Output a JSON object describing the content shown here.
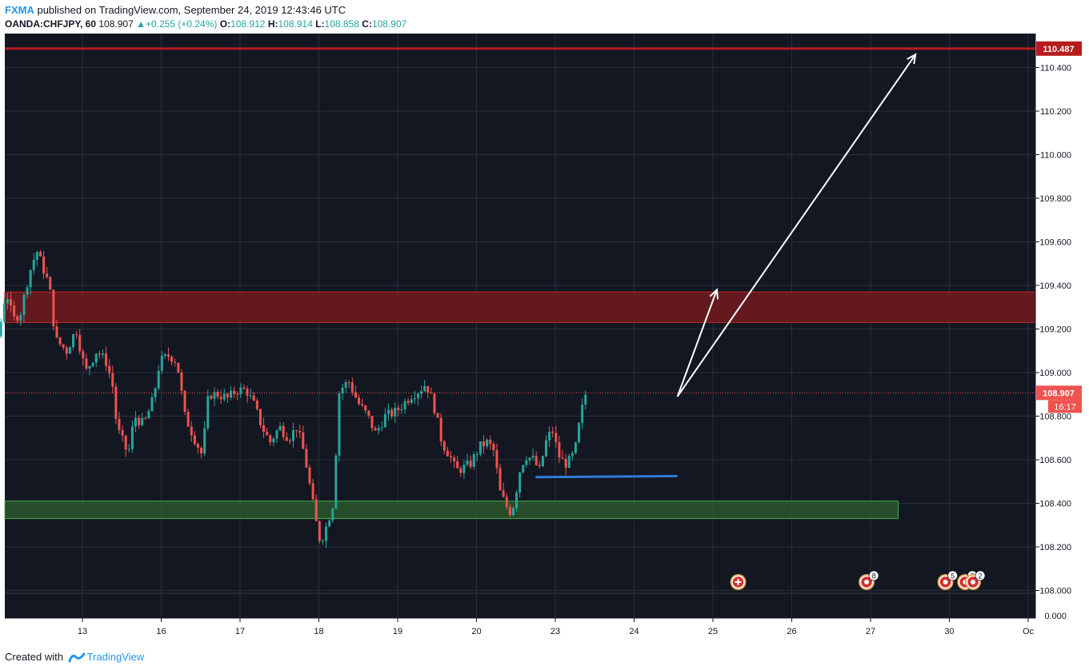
{
  "header": {
    "author": "FXMA",
    "published_text": "published on TradingView.com, September 24, 2019 12:43:46 UTC",
    "symbol": "OANDA:CHFJPY, 60",
    "last": "108.907",
    "change": "▲+0.255 (+0.24%)",
    "o_label": "O:",
    "o_value": "108.912",
    "h_label": "H:",
    "h_value": "108.914",
    "l_label": "L:",
    "l_value": "108.858",
    "c_label": "C:",
    "c_value": "108.907"
  },
  "footer": {
    "created_with": "Created with",
    "brand": "TradingView"
  },
  "colors": {
    "background": "#131722",
    "grid": "#2a2e39",
    "up": "#26a69a",
    "down": "#ef5350",
    "resistance_line": "#b71c1c",
    "resistance_zone": "#6e1a1f",
    "support_zone": "#2e5f2c",
    "support_line": "#2f7bd8",
    "arrow": "#ffffff",
    "price_label": "#ef5350"
  },
  "chart_data": {
    "type": "candlestick",
    "symbol": "OANDA:CHFJPY",
    "interval": "60",
    "ylim": [
      107.95,
      110.55
    ],
    "y_ticks": [
      "110.400",
      "110.200",
      "110.000",
      "109.800",
      "109.600",
      "109.400",
      "109.200",
      "109.000",
      "108.800",
      "108.600",
      "108.400",
      "108.200",
      "108.000"
    ],
    "x_ticks": [
      {
        "label": "13",
        "day": 1
      },
      {
        "label": "16",
        "day": 2
      },
      {
        "label": "17",
        "day": 3
      },
      {
        "label": "18",
        "day": 4
      },
      {
        "label": "19",
        "day": 5
      },
      {
        "label": "20",
        "day": 6
      },
      {
        "label": "23",
        "day": 7
      },
      {
        "label": "24",
        "day": 8
      },
      {
        "label": "25",
        "day": 9
      },
      {
        "label": "26",
        "day": 10
      },
      {
        "label": "27",
        "day": 11
      },
      {
        "label": "30",
        "day": 12
      },
      {
        "label": "Oc",
        "day": 13
      }
    ],
    "current_price": "108.907",
    "countdown": "16:17",
    "resistance_price": "110.487",
    "volume_axis_label": "0.000",
    "resistance_line": 110.487,
    "resistance_zone": [
      109.23,
      109.37
    ],
    "support_zone": [
      108.33,
      108.41
    ],
    "support_line": {
      "from": {
        "day": 6.75,
        "price": 108.52
      },
      "to": {
        "day": 8.55,
        "price": 108.525
      }
    },
    "arrows": [
      {
        "from": {
          "day": 8.55,
          "price": 108.89
        },
        "to": {
          "day": 9.05,
          "price": 109.38
        }
      },
      {
        "from": {
          "day": 8.55,
          "price": 108.89
        },
        "to": {
          "day": 11.57,
          "price": 110.46
        }
      }
    ],
    "event_markers": [
      {
        "day": 9.32,
        "label": "",
        "type": "plus"
      },
      {
        "day": 10.95,
        "label": "8",
        "type": "flag"
      },
      {
        "day": 11.95,
        "label": "5",
        "type": "flag"
      },
      {
        "day": 12.2,
        "label": "2",
        "type": "flag"
      },
      {
        "day": 12.3,
        "label": "2",
        "type": "flag"
      }
    ],
    "path": [
      [
        -0.95,
        108.72
      ],
      [
        -0.85,
        108.8
      ],
      [
        -0.72,
        108.78
      ],
      [
        -0.58,
        108.9
      ],
      [
        -0.48,
        108.95
      ],
      [
        -0.46,
        108.4
      ],
      [
        -0.42,
        108.36
      ],
      [
        -0.34,
        108.8
      ],
      [
        -0.3,
        109.05
      ],
      [
        -0.26,
        109.25
      ],
      [
        -0.18,
        109.15
      ],
      [
        -0.12,
        109.1
      ],
      [
        -0.04,
        109.22
      ],
      [
        0.03,
        109.38
      ],
      [
        0.12,
        109.24
      ],
      [
        0.22,
        109.28
      ],
      [
        0.32,
        109.45
      ],
      [
        0.42,
        109.56
      ],
      [
        0.52,
        109.46
      ],
      [
        0.58,
        109.4
      ],
      [
        0.66,
        109.15
      ],
      [
        0.8,
        109.1
      ],
      [
        0.92,
        109.2
      ],
      [
        1.04,
        109.0
      ],
      [
        1.18,
        109.1
      ],
      [
        1.3,
        109.05
      ],
      [
        1.38,
        108.95
      ],
      [
        1.42,
        108.8
      ],
      [
        1.48,
        108.7
      ],
      [
        1.52,
        108.68
      ],
      [
        1.58,
        108.62
      ],
      [
        1.66,
        108.8
      ],
      [
        1.78,
        108.76
      ],
      [
        1.9,
        108.88
      ],
      [
        1.98,
        109.05
      ],
      [
        2.1,
        109.08
      ],
      [
        2.2,
        109.05
      ],
      [
        2.3,
        108.8
      ],
      [
        2.42,
        108.7
      ],
      [
        2.52,
        108.62
      ],
      [
        2.6,
        108.9
      ],
      [
        2.72,
        108.9
      ],
      [
        2.85,
        108.88
      ],
      [
        2.95,
        108.92
      ],
      [
        3.08,
        108.92
      ],
      [
        3.18,
        108.85
      ],
      [
        3.28,
        108.75
      ],
      [
        3.38,
        108.68
      ],
      [
        3.5,
        108.75
      ],
      [
        3.62,
        108.7
      ],
      [
        3.72,
        108.75
      ],
      [
        3.82,
        108.62
      ],
      [
        3.9,
        108.45
      ],
      [
        3.96,
        108.32
      ],
      [
        4.02,
        108.22
      ],
      [
        4.1,
        108.3
      ],
      [
        4.18,
        108.4
      ],
      [
        4.26,
        108.92
      ],
      [
        4.38,
        108.96
      ],
      [
        4.5,
        108.86
      ],
      [
        4.62,
        108.8
      ],
      [
        4.72,
        108.72
      ],
      [
        4.84,
        108.8
      ],
      [
        4.98,
        108.82
      ],
      [
        5.08,
        108.86
      ],
      [
        5.18,
        108.9
      ],
      [
        5.28,
        108.92
      ],
      [
        5.36,
        108.95
      ],
      [
        5.46,
        108.85
      ],
      [
        5.56,
        108.68
      ],
      [
        5.66,
        108.62
      ],
      [
        5.74,
        108.55
      ],
      [
        5.82,
        108.56
      ],
      [
        5.92,
        108.58
      ],
      [
        6.04,
        108.66
      ],
      [
        6.14,
        108.68
      ],
      [
        6.22,
        108.64
      ],
      [
        6.3,
        108.45
      ],
      [
        6.36,
        108.4
      ],
      [
        6.42,
        108.36
      ],
      [
        6.48,
        108.4
      ],
      [
        6.54,
        108.54
      ],
      [
        6.62,
        108.62
      ],
      [
        6.72,
        108.6
      ],
      [
        6.8,
        108.55
      ],
      [
        6.88,
        108.68
      ],
      [
        6.96,
        108.74
      ],
      [
        7.04,
        108.62
      ],
      [
        7.12,
        108.58
      ],
      [
        7.2,
        108.6
      ],
      [
        7.26,
        108.66
      ],
      [
        7.32,
        108.8
      ],
      [
        7.38,
        108.9
      ],
      [
        7.42,
        108.907
      ]
    ]
  }
}
